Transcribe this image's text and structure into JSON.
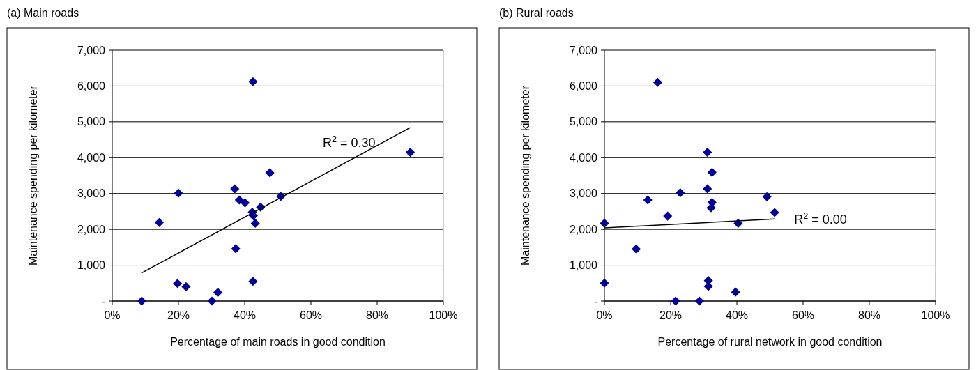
{
  "chart_data": [
    {
      "type": "scatter",
      "title": "(a) Main roads",
      "xlabel": "Percentage of main roads in good condition",
      "ylabel": "Maintenance spending per kilometer",
      "xlim": [
        0,
        100
      ],
      "xticks": [
        {
          "value": 0,
          "label": "0%"
        },
        {
          "value": 20,
          "label": "20%"
        },
        {
          "value": 40,
          "label": "40%"
        },
        {
          "value": 60,
          "label": "60%"
        },
        {
          "value": 80,
          "label": "80%"
        },
        {
          "value": 100,
          "label": "100%"
        }
      ],
      "ylim": [
        0,
        7000
      ],
      "yticks": [
        {
          "value": 0,
          "label": "-"
        },
        {
          "value": 1000,
          "label": "1,000"
        },
        {
          "value": 2000,
          "label": "2,000"
        },
        {
          "value": 3000,
          "label": "3,000"
        },
        {
          "value": 4000,
          "label": "4,000"
        },
        {
          "value": 5000,
          "label": "5,000"
        },
        {
          "value": 6000,
          "label": "6,000"
        },
        {
          "value": 7000,
          "label": "7,000"
        }
      ],
      "grid": "y",
      "series": [
        {
          "color": "#000099",
          "marker": "diamond",
          "x": [
            8.9,
            14.2,
            20.0,
            19.7,
            22.3,
            30.1,
            31.9,
            37.0,
            37.3,
            38.4,
            40.1,
            42.5,
            42.3,
            42.6,
            43.2,
            42.5,
            44.8,
            47.6,
            50.9,
            90.0
          ],
          "values": [
            0,
            2190,
            3010,
            490,
            400,
            0,
            240,
            3130,
            1460,
            2820,
            2740,
            6120,
            2480,
            2380,
            2170,
            550,
            2620,
            3580,
            2920,
            4150
          ]
        },
        {
          "type": "line",
          "color": "#000000",
          "marker": "none",
          "x": [
            8.8,
            90.0
          ],
          "values": [
            780,
            4840
          ]
        }
      ],
      "annotations": [
        "R$^{2}$ = 0.30"
      ]
    },
    {
      "type": "scatter",
      "title": "(b) Rural roads",
      "xlabel": "Percentage of rural network in good condition",
      "ylabel": "Maintenance spending per kilometer",
      "xlim": [
        0,
        100
      ],
      "xticks": [
        {
          "value": 0,
          "label": "0%"
        },
        {
          "value": 20,
          "label": "20%"
        },
        {
          "value": 40,
          "label": "40%"
        },
        {
          "value": 60,
          "label": "60%"
        },
        {
          "value": 80,
          "label": "80%"
        },
        {
          "value": 100,
          "label": "100%"
        }
      ],
      "ylim": [
        0,
        7000
      ],
      "yticks": [
        {
          "value": 0,
          "label": "-"
        },
        {
          "value": 1000,
          "label": "1,000"
        },
        {
          "value": 2000,
          "label": "2,000"
        },
        {
          "value": 3000,
          "label": "3,000"
        },
        {
          "value": 4000,
          "label": "4,000"
        },
        {
          "value": 5000,
          "label": "5,000"
        },
        {
          "value": 6000,
          "label": "6,000"
        },
        {
          "value": 7000,
          "label": "7,000"
        }
      ],
      "grid": "y",
      "series": [
        {
          "color": "#000099",
          "marker": "diamond",
          "x": [
            0,
            0,
            16.1,
            13.1,
            9.6,
            19.1,
            22.9,
            21.5,
            28.7,
            31.1,
            32.5,
            31.1,
            32.5,
            32.2,
            31.4,
            31.4,
            39.6,
            40.4,
            49.1,
            51.4
          ],
          "values": [
            2170,
            500,
            6100,
            2820,
            1450,
            2370,
            3020,
            0,
            0,
            4150,
            3590,
            3130,
            2750,
            2600,
            570,
            410,
            250,
            2170,
            2910,
            2470
          ]
        },
        {
          "type": "line",
          "color": "#000000",
          "marker": "none",
          "x": [
            0,
            51.4
          ],
          "values": [
            2040,
            2290
          ]
        }
      ],
      "annotations": [
        "R$^{2}$ = 0.00"
      ]
    }
  ]
}
